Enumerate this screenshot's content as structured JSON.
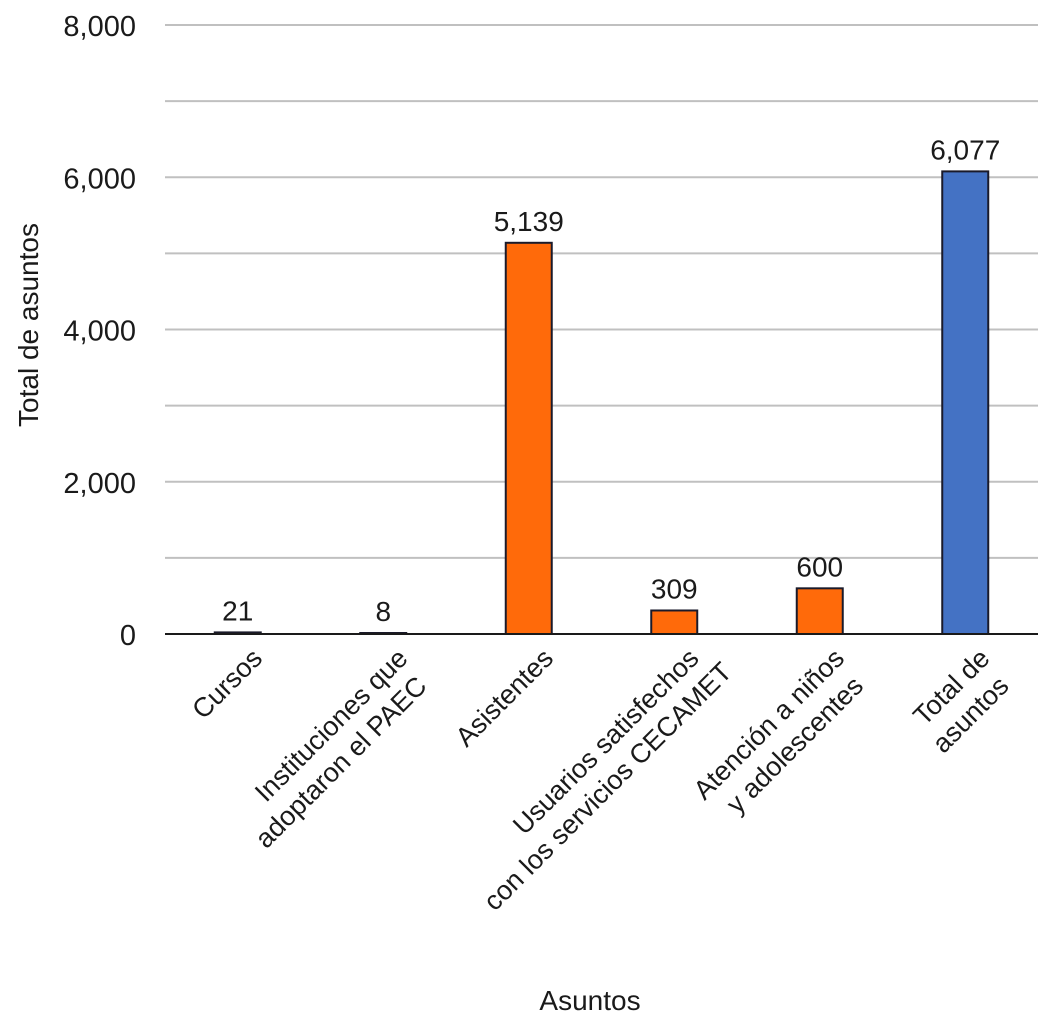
{
  "chart_data": {
    "type": "bar",
    "title": "",
    "xlabel": "Asuntos",
    "ylabel": "Total de asuntos",
    "ylim": [
      0,
      8000
    ],
    "yticks": [
      0,
      1000,
      2000,
      3000,
      4000,
      5000,
      6000,
      7000,
      8000
    ],
    "ytick_labels": [
      "0",
      "",
      "2,000",
      "",
      "4,000",
      "",
      "6,000",
      "",
      "8,000"
    ],
    "grid": true,
    "categories": [
      [
        "Cursos"
      ],
      [
        "Instituciones que",
        "adoptaron el PAEC"
      ],
      [
        "Asistentes"
      ],
      [
        "Usuarios satisfechos",
        "con los servicios CECAMET"
      ],
      [
        "Atención a niños",
        "y adolescentes"
      ],
      [
        "Total de",
        "asuntos"
      ]
    ],
    "values": [
      21,
      8,
      5139,
      309,
      600,
      6077
    ],
    "data_labels": [
      "21",
      "8",
      "5,139",
      "309",
      "600",
      "6,077"
    ],
    "colors": [
      "#1f1f1f",
      "#1f1f1f",
      "#FF6A0A",
      "#FF6A0A",
      "#FF6A0A",
      "#4472C4"
    ],
    "border_color": "#1a1a2a",
    "grid_color": "#c0c0c0"
  }
}
